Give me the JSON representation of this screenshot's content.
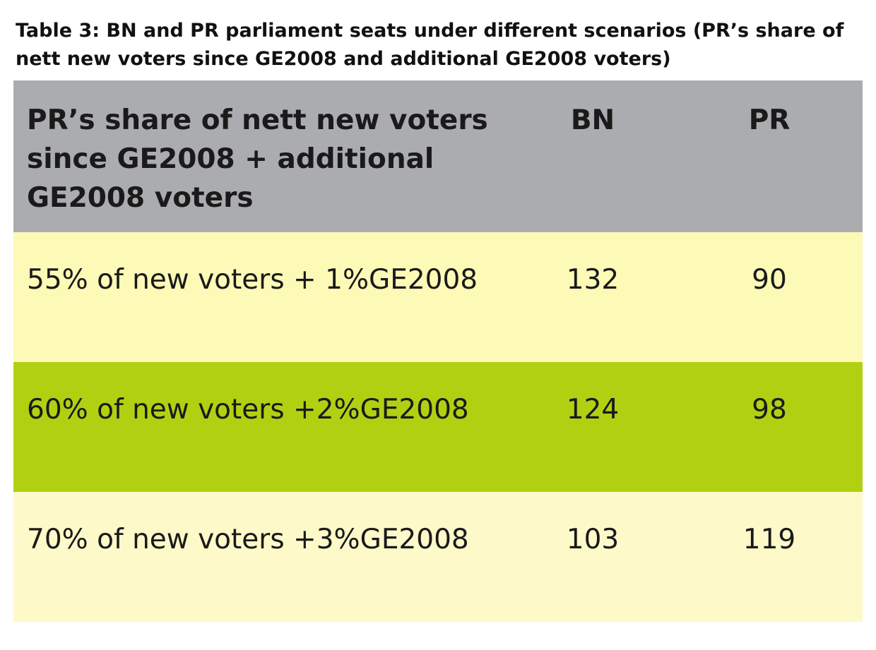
{
  "caption": "Table 3: BN and PR parliament seats under different scenarios (PR’s share of nett new voters since GE2008 and additional GE2008 voters)",
  "colors": {
    "header_bg": "#abacaf",
    "row_light": "#fdf9b6",
    "row_green": "#b2d012",
    "row_pale": "#fef9c9"
  },
  "table": {
    "headers": {
      "scenario": "PR’s share of nett new voters since GE2008 + additional GE2008 voters",
      "bn": "BN",
      "pr": "PR"
    },
    "rows": [
      {
        "scenario": "55% of  new voters + 1%GE2008",
        "bn": "132",
        "pr": "90"
      },
      {
        "scenario": "60% of  new voters +2%GE2008",
        "bn": "124",
        "pr": "98"
      },
      {
        "scenario": "70% of  new voters +3%GE2008",
        "bn": "103",
        "pr": "119"
      }
    ]
  }
}
